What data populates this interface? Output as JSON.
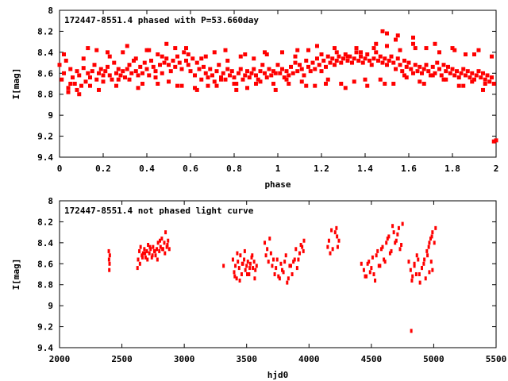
{
  "chart_data": [
    {
      "type": "scatter",
      "title": "172447-8551.4 phased with P=53.660day",
      "xlabel": "phase",
      "ylabel": "I[mag]",
      "xlim": [
        0,
        2
      ],
      "ylim": [
        9.4,
        8
      ],
      "y_inverted": true,
      "xticks": [
        0,
        0.2,
        0.4,
        0.6,
        0.8,
        1,
        1.2,
        1.4,
        1.6,
        1.8,
        2
      ],
      "xtick_labels": [
        "0",
        "0.2",
        "0.4",
        "0.6",
        "0.8",
        "1",
        "1.2",
        "1.4",
        "1.6",
        "1.8",
        "2"
      ],
      "yticks": [
        8,
        8.2,
        8.4,
        8.6,
        8.8,
        9,
        9.2,
        9.4
      ],
      "ytick_labels": [
        "8",
        "8.2",
        "8.4",
        "8.6",
        "8.8",
        "9",
        "9.2",
        "9.4"
      ],
      "grid": false,
      "legend": "none",
      "marker_color": "#ff0000",
      "series": [
        {
          "x": [
            0.0,
            0.01,
            0.02,
            0.03,
            0.04,
            0.05,
            0.06,
            0.07,
            0.08,
            0.09,
            0.1,
            0.11,
            0.12,
            0.13,
            0.14,
            0.15,
            0.16,
            0.17,
            0.18,
            0.19,
            0.2,
            0.21,
            0.22,
            0.23,
            0.24,
            0.25,
            0.26,
            0.27,
            0.28,
            0.29,
            0.3,
            0.31,
            0.32,
            0.33,
            0.34,
            0.35,
            0.36,
            0.37,
            0.38,
            0.39,
            0.4,
            0.41,
            0.42,
            0.43,
            0.44,
            0.45,
            0.46,
            0.47,
            0.48,
            0.49,
            0.5,
            0.51,
            0.52,
            0.53,
            0.54,
            0.55,
            0.56,
            0.57,
            0.58,
            0.59,
            0.6,
            0.61,
            0.62,
            0.63,
            0.64,
            0.65,
            0.66,
            0.67,
            0.68,
            0.69,
            0.7,
            0.71,
            0.72,
            0.73,
            0.74,
            0.75,
            0.76,
            0.77,
            0.78,
            0.79,
            0.8,
            0.81,
            0.82,
            0.83,
            0.84,
            0.85,
            0.86,
            0.87,
            0.88,
            0.89,
            0.9,
            0.91,
            0.92,
            0.93,
            0.94,
            0.95,
            0.96,
            0.97,
            0.98,
            0.99,
            0.02,
            0.05,
            0.08,
            0.11,
            0.14,
            0.17,
            0.2,
            0.23,
            0.26,
            0.29,
            0.32,
            0.35,
            0.38,
            0.41,
            0.44,
            0.47,
            0.5,
            0.53,
            0.56,
            0.59,
            0.62,
            0.65,
            0.68,
            0.71,
            0.74,
            0.77,
            0.8,
            0.83,
            0.86,
            0.89,
            0.92,
            0.95,
            0.98,
            0.04,
            0.09,
            0.13,
            0.18,
            0.22,
            0.27,
            0.31,
            0.36,
            0.4,
            0.45,
            0.49,
            0.54,
            0.58,
            0.63,
            0.67,
            0.72,
            0.76,
            0.81,
            0.85,
            0.9,
            0.94,
            0.99,
            1.0,
            1.01,
            1.02,
            1.03,
            1.04,
            1.05,
            1.06,
            1.07,
            1.08,
            1.09,
            1.1,
            1.11,
            1.12,
            1.13,
            1.14,
            1.15,
            1.16,
            1.17,
            1.18,
            1.19,
            1.2,
            1.21,
            1.22,
            1.23,
            1.24,
            1.25,
            1.26,
            1.27,
            1.28,
            1.29,
            1.3,
            1.31,
            1.32,
            1.33,
            1.34,
            1.35,
            1.36,
            1.37,
            1.38,
            1.39,
            1.4,
            1.41,
            1.42,
            1.43,
            1.44,
            1.45,
            1.46,
            1.47,
            1.48,
            1.49,
            1.5,
            1.51,
            1.52,
            1.53,
            1.54,
            1.55,
            1.56,
            1.57,
            1.58,
            1.59,
            1.6,
            1.61,
            1.62,
            1.63,
            1.64,
            1.65,
            1.66,
            1.67,
            1.68,
            1.69,
            1.7,
            1.71,
            1.72,
            1.73,
            1.74,
            1.75,
            1.76,
            1.77,
            1.78,
            1.79,
            1.8,
            1.81,
            1.82,
            1.83,
            1.84,
            1.85,
            1.86,
            1.87,
            1.88,
            1.89,
            1.9,
            1.91,
            1.92,
            1.93,
            1.94,
            1.95,
            1.96,
            1.97,
            1.98,
            1.99,
            1.02,
            1.05,
            1.08,
            1.11,
            1.14,
            1.17,
            1.2,
            1.23,
            1.26,
            1.29,
            1.32,
            1.35,
            1.38,
            1.41,
            1.44,
            1.47,
            1.5,
            1.53,
            1.56,
            1.59,
            1.62,
            1.65,
            1.68,
            1.71,
            1.74,
            1.77,
            1.8,
            1.83,
            1.86,
            1.89,
            1.92,
            1.95,
            1.98,
            1.04,
            1.09,
            1.13,
            1.18,
            1.22,
            1.27,
            1.31,
            1.36,
            1.4,
            1.45,
            1.49,
            1.54,
            1.58,
            1.63,
            1.67,
            1.72,
            1.76,
            1.81,
            1.85,
            1.9,
            1.94,
            1.48,
            1.5,
            1.55,
            1.62,
            1.99,
            2.0
          ],
          "y": [
            8.52,
            8.66,
            8.6,
            8.48,
            8.74,
            8.56,
            8.64,
            8.7,
            8.58,
            8.62,
            8.72,
            8.55,
            8.68,
            8.6,
            8.64,
            8.58,
            8.52,
            8.66,
            8.6,
            8.56,
            8.62,
            8.58,
            8.54,
            8.62,
            8.66,
            8.5,
            8.6,
            8.56,
            8.62,
            8.58,
            8.64,
            8.56,
            8.52,
            8.6,
            8.48,
            8.58,
            8.62,
            8.54,
            8.6,
            8.5,
            8.56,
            8.62,
            8.48,
            8.54,
            8.58,
            8.42,
            8.52,
            8.6,
            8.5,
            8.46,
            8.52,
            8.58,
            8.48,
            8.54,
            8.44,
            8.5,
            8.56,
            8.4,
            8.48,
            8.52,
            8.58,
            8.46,
            8.62,
            8.5,
            8.56,
            8.66,
            8.54,
            8.6,
            8.64,
            8.56,
            8.62,
            8.68,
            8.58,
            8.52,
            8.64,
            8.6,
            8.66,
            8.56,
            8.62,
            8.58,
            8.64,
            8.7,
            8.6,
            8.56,
            8.66,
            8.62,
            8.58,
            8.64,
            8.6,
            8.56,
            8.62,
            8.66,
            8.58,
            8.52,
            8.6,
            8.64,
            8.56,
            8.62,
            8.58,
            8.6,
            8.42,
            8.7,
            8.76,
            8.46,
            8.72,
            8.38,
            8.68,
            8.44,
            8.72,
            8.4,
            8.66,
            8.46,
            8.7,
            8.38,
            8.64,
            8.44,
            8.68,
            8.36,
            8.72,
            8.42,
            8.74,
            8.46,
            8.72,
            8.4,
            8.66,
            8.48,
            8.7,
            8.44,
            8.74,
            8.46,
            8.68,
            8.42,
            8.7,
            8.78,
            8.8,
            8.36,
            8.76,
            8.4,
            8.66,
            8.34,
            8.74,
            8.38,
            8.7,
            8.32,
            8.72,
            8.36,
            8.76,
            8.44,
            8.72,
            8.38,
            8.76,
            8.42,
            8.7,
            8.4,
            8.76,
            8.52,
            8.6,
            8.56,
            8.64,
            8.58,
            8.62,
            8.54,
            8.6,
            8.5,
            8.58,
            8.52,
            8.56,
            8.62,
            8.48,
            8.54,
            8.58,
            8.5,
            8.56,
            8.46,
            8.52,
            8.58,
            8.48,
            8.54,
            8.44,
            8.5,
            8.46,
            8.52,
            8.48,
            8.44,
            8.5,
            8.46,
            8.42,
            8.48,
            8.44,
            8.5,
            8.46,
            8.4,
            8.48,
            8.44,
            8.5,
            8.46,
            8.42,
            8.48,
            8.52,
            8.46,
            8.4,
            8.48,
            8.44,
            8.5,
            8.46,
            8.52,
            8.48,
            8.44,
            8.5,
            8.56,
            8.46,
            8.52,
            8.58,
            8.48,
            8.54,
            8.5,
            8.56,
            8.6,
            8.52,
            8.58,
            8.54,
            8.6,
            8.56,
            8.52,
            8.58,
            8.62,
            8.54,
            8.6,
            8.5,
            8.56,
            8.62,
            8.52,
            8.58,
            8.54,
            8.6,
            8.56,
            8.62,
            8.58,
            8.64,
            8.6,
            8.56,
            8.62,
            8.58,
            8.64,
            8.6,
            8.66,
            8.62,
            8.58,
            8.64,
            8.6,
            8.66,
            8.62,
            8.68,
            8.64,
            8.7,
            8.4,
            8.7,
            8.44,
            8.68,
            8.38,
            8.72,
            8.42,
            8.66,
            8.36,
            8.7,
            8.44,
            8.68,
            8.4,
            8.72,
            8.36,
            8.66,
            8.34,
            8.7,
            8.38,
            8.64,
            8.32,
            8.68,
            8.36,
            8.62,
            8.4,
            8.66,
            8.36,
            8.72,
            8.42,
            8.68,
            8.38,
            8.7,
            8.44,
            8.66,
            8.38,
            8.72,
            8.34,
            8.7,
            8.4,
            8.74,
            8.36,
            8.66,
            8.32,
            8.7,
            8.28,
            8.62,
            8.36,
            8.7,
            8.32,
            8.66,
            8.38,
            8.72,
            8.42,
            8.76,
            8.2,
            8.22,
            8.24,
            8.26,
            9.25,
            9.24
          ]
        }
      ]
    },
    {
      "type": "scatter",
      "title": "172447-8551.4 not phased light curve",
      "xlabel": "hjd0",
      "ylabel": "I[mag]",
      "xlim": [
        2000,
        5500
      ],
      "ylim": [
        9.4,
        8
      ],
      "y_inverted": true,
      "xticks": [
        2000,
        2500,
        3000,
        3500,
        4000,
        4500,
        5000,
        5500
      ],
      "xtick_labels": [
        "2000",
        "2500",
        "3000",
        "3500",
        "4000",
        "4500",
        "5000",
        "5500"
      ],
      "yticks": [
        8,
        8.2,
        8.4,
        8.6,
        8.8,
        9,
        9.2,
        9.4
      ],
      "ytick_labels": [
        "8",
        "8.2",
        "8.4",
        "8.6",
        "8.8",
        "9",
        "9.2",
        "9.4"
      ],
      "grid": false,
      "legend": "none",
      "marker_color": "#ff0000",
      "series": [
        {
          "x": [
            2395,
            2397,
            2399,
            2401,
            2403,
            2625,
            2630,
            2640,
            2650,
            2660,
            2670,
            2680,
            2690,
            2700,
            2710,
            2720,
            2730,
            2740,
            2750,
            2760,
            2770,
            2780,
            2790,
            2800,
            2810,
            2820,
            2830,
            2840,
            2850,
            2860,
            2870,
            2880,
            2645,
            2665,
            2685,
            2705,
            2725,
            2745,
            2765,
            2785,
            2805,
            2825,
            2845,
            2865,
            3315,
            3390,
            3400,
            3410,
            3420,
            3430,
            3440,
            3450,
            3460,
            3470,
            3480,
            3490,
            3500,
            3510,
            3520,
            3530,
            3540,
            3550,
            3560,
            3570,
            3580,
            3405,
            3425,
            3445,
            3465,
            3485,
            3505,
            3525,
            3545,
            3565,
            3645,
            3655,
            3665,
            3675,
            3685,
            3695,
            3705,
            3725,
            3745,
            3765,
            3785,
            3805,
            3825,
            3845,
            3865,
            3885,
            3905,
            3925,
            3945,
            3960,
            3715,
            3735,
            3755,
            3775,
            3795,
            3815,
            3835,
            3855,
            3875,
            3895,
            3915,
            3935,
            3955,
            4150,
            4160,
            4170,
            4180,
            4190,
            4210,
            4220,
            4225,
            4230,
            4240,
            4420,
            4440,
            4460,
            4480,
            4500,
            4520,
            4540,
            4560,
            4580,
            4600,
            4620,
            4640,
            4660,
            4680,
            4700,
            4720,
            4740,
            4450,
            4470,
            4490,
            4510,
            4530,
            4550,
            4570,
            4590,
            4610,
            4630,
            4650,
            4670,
            4690,
            4710,
            4730,
            4750,
            4800,
            4815,
            4830,
            4845,
            4860,
            4875,
            4890,
            4905,
            4920,
            4935,
            4950,
            4965,
            4980,
            4990,
            4825,
            4845,
            4865,
            4885,
            4905,
            4925,
            4945,
            4965,
            4985,
            4960,
            4975,
            4990,
            5005,
            5015,
            4820
          ],
          "y": [
            8.48,
            8.56,
            8.66,
            8.6,
            8.52,
            8.64,
            8.56,
            8.48,
            8.44,
            8.52,
            8.5,
            8.46,
            8.54,
            8.48,
            8.42,
            8.5,
            8.46,
            8.54,
            8.44,
            8.48,
            8.52,
            8.46,
            8.4,
            8.48,
            8.44,
            8.36,
            8.46,
            8.4,
            8.3,
            8.44,
            8.38,
            8.46,
            8.6,
            8.54,
            8.5,
            8.56,
            8.44,
            8.52,
            8.48,
            8.56,
            8.38,
            8.46,
            8.5,
            8.42,
            8.62,
            8.56,
            8.68,
            8.62,
            8.74,
            8.58,
            8.64,
            8.52,
            8.7,
            8.6,
            8.56,
            8.66,
            8.62,
            8.58,
            8.7,
            8.6,
            8.54,
            8.64,
            8.58,
            8.66,
            8.62,
            8.72,
            8.5,
            8.76,
            8.6,
            8.48,
            8.7,
            8.64,
            8.52,
            8.74,
            8.4,
            8.52,
            8.46,
            8.58,
            8.36,
            8.5,
            8.62,
            8.7,
            8.56,
            8.74,
            8.66,
            8.58,
            8.78,
            8.62,
            8.7,
            8.56,
            8.64,
            8.5,
            8.44,
            8.38,
            8.56,
            8.64,
            8.72,
            8.6,
            8.68,
            8.52,
            8.74,
            8.62,
            8.58,
            8.46,
            8.56,
            8.42,
            8.48,
            8.44,
            8.38,
            8.5,
            8.28,
            8.46,
            8.3,
            8.26,
            8.34,
            8.44,
            8.38,
            8.6,
            8.66,
            8.72,
            8.58,
            8.64,
            8.7,
            8.52,
            8.62,
            8.46,
            8.56,
            8.4,
            8.34,
            8.48,
            8.3,
            8.38,
            8.26,
            8.42,
            8.72,
            8.6,
            8.68,
            8.54,
            8.76,
            8.48,
            8.62,
            8.44,
            8.58,
            8.36,
            8.5,
            8.24,
            8.4,
            8.32,
            8.46,
            8.22,
            8.58,
            8.66,
            8.72,
            8.62,
            8.7,
            8.56,
            8.78,
            8.64,
            8.6,
            8.74,
            8.52,
            8.68,
            8.58,
            8.66,
            8.76,
            8.6,
            8.52,
            8.7,
            8.64,
            8.56,
            8.48,
            8.4,
            8.34,
            8.44,
            8.36,
            8.3,
            8.4,
            8.26,
            9.24
          ]
        }
      ]
    }
  ]
}
